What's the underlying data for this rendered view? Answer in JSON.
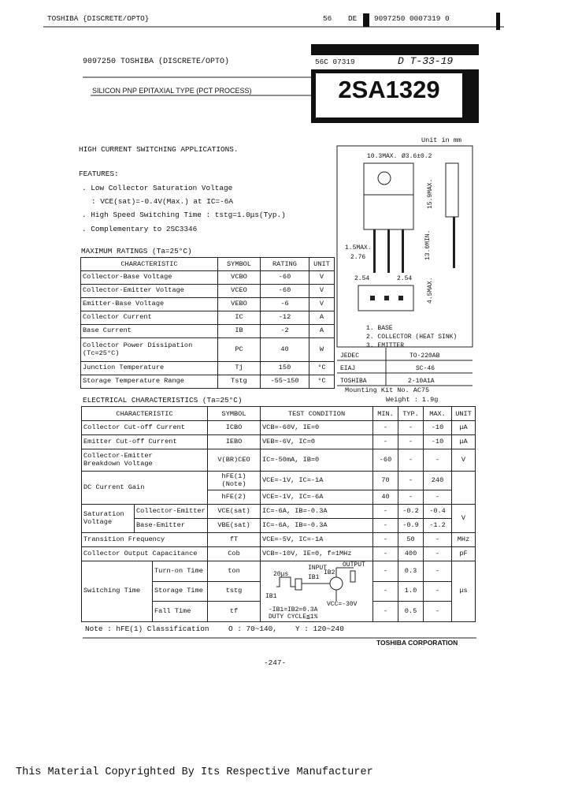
{
  "header": {
    "company_line": "TOSHIBA {DISCRETE/OPTO}",
    "code1": "56",
    "code2": "DE",
    "code3": "9097250 0007319 0",
    "line2_left": "9097250 TOSHIBA (DISCRETE/OPTO)",
    "line2_code": "56C 07319",
    "line2_hand": "D T-33-19",
    "subtitle": "SILICON PNP EPITAXIAL TYPE (PCT PROCESS)",
    "part_number": "2SA1329"
  },
  "unit_note": "Unit in mm",
  "application": "HIGH CURRENT SWITCHING APPLICATIONS.",
  "features": {
    "heading": "FEATURES:",
    "items": [
      ". Low Collector Saturation Voltage",
      ": VCE(sat)=-0.4V(Max.)  at IC=-6A",
      ". High Speed Switching Time : tstg=1.0μs(Typ.)",
      ". Complementary to 2SC3346"
    ]
  },
  "package": {
    "dimensions": [
      "10.3MAX.",
      "Ø3.6±0.2",
      "15.9MAX.",
      "13.0MIN.",
      "1.5MAX.",
      "2.76",
      "2.54",
      "2.54",
      "4.5MAX."
    ],
    "pins": [
      "1. BASE",
      "2. COLLECTOR (HEAT SINK)",
      "3. EMITTER"
    ],
    "standards": [
      [
        "JEDEC",
        "TO-220AB"
      ],
      [
        "EIAJ",
        "SC-46"
      ],
      [
        "TOSHIBA",
        "2-10A1A"
      ]
    ],
    "mounting_kit": "Mounting Kit No. AC75",
    "weight": "Weight : 1.9g"
  },
  "max_ratings": {
    "title": "MAXIMUM RATINGS (Ta=25°C)",
    "headers": [
      "CHARACTERISTIC",
      "SYMBOL",
      "RATING",
      "UNIT"
    ],
    "rows": [
      [
        "Collector-Base Voltage",
        "VCBO",
        "-60",
        "V"
      ],
      [
        "Collector-Emitter Voltage",
        "VCEO",
        "-60",
        "V"
      ],
      [
        "Emitter-Base Voltage",
        "VEBO",
        "-6",
        "V"
      ],
      [
        "Collector Current",
        "IC",
        "-12",
        "A"
      ],
      [
        "Base Current",
        "IB",
        "-2",
        "A"
      ],
      [
        "Collector Power Dissipation (Tc=25°C)",
        "PC",
        "40",
        "W"
      ],
      [
        "Junction Temperature",
        "Tj",
        "150",
        "°C"
      ],
      [
        "Storage Temperature Range",
        "Tstg",
        "-55~150",
        "°C"
      ]
    ]
  },
  "electrical": {
    "title": "ELECTRICAL CHARACTERISTICS (Ta=25°C)",
    "headers": [
      "CHARACTERISTIC",
      "SYMBOL",
      "TEST CONDITION",
      "MIN.",
      "TYP.",
      "MAX.",
      "UNIT"
    ],
    "rows": [
      [
        "Collector Cut-off Current",
        "ICBO",
        "VCB=-60V, IE=0",
        "-",
        "-",
        "-10",
        "μA"
      ],
      [
        "Emitter Cut-off Current",
        "IEBO",
        "VEB=-6V, IC=0",
        "-",
        "-",
        "-10",
        "μA"
      ],
      [
        "Collector-Emitter Breakdown Voltage",
        "V(BR)CEO",
        "IC=-50mA, IB=0",
        "-60",
        "-",
        "-",
        "V"
      ],
      [
        "DC Current Gain",
        "hFE(1) (Note)",
        "VCE=-1V, IC=-1A",
        "70",
        "-",
        "240"
      ],
      [
        "hFE(2)",
        "VCE=-1V, IC=-6A",
        "40",
        "-",
        "-"
      ],
      [
        "Saturation Voltage",
        "Collector-Emitter",
        "VCE(sat)",
        "IC=-6A, IB=-0.3A",
        "-",
        "-0.2",
        "-0.4",
        "V"
      ],
      [
        "Base-Emitter",
        "VBE(sat)",
        "IC=-6A, IB=-0.3A",
        "-",
        "-0.9",
        "-1.2"
      ],
      [
        "Transition Frequency",
        "fT",
        "VCE=-5V, IC=-1A",
        "-",
        "50",
        "-",
        "MHz"
      ],
      [
        "Collector Output Capacitance",
        "Cob",
        "VCB=-10V, IE=0, f=1MHz",
        "-",
        "400",
        "-",
        "pF"
      ],
      [
        "Switching Time",
        "Turn-on Time",
        "ton",
        "-",
        "0.3",
        "-",
        "μs"
      ],
      [
        "Storage Time",
        "tstg",
        "-",
        "1.0",
        "-"
      ],
      [
        "Fall Time",
        "tf",
        "-",
        "0.5",
        "-"
      ]
    ],
    "circuit": [
      "20μs",
      "INPUT",
      "IB1",
      "IB2",
      "OUTPUT",
      "IB1",
      "VCC=-30V",
      "-IB1=IB2=0.3A",
      "DUTY CYCLE≦1%"
    ]
  },
  "note": [
    "Note : hFE(1)  Classification",
    "O : 70~140,",
    "Y : 120~240"
  ],
  "corporation": "TOSHIBA CORPORATION",
  "page_number": "-247-",
  "copyright": "This Material Copyrighted By Its Respective Manufacturer"
}
